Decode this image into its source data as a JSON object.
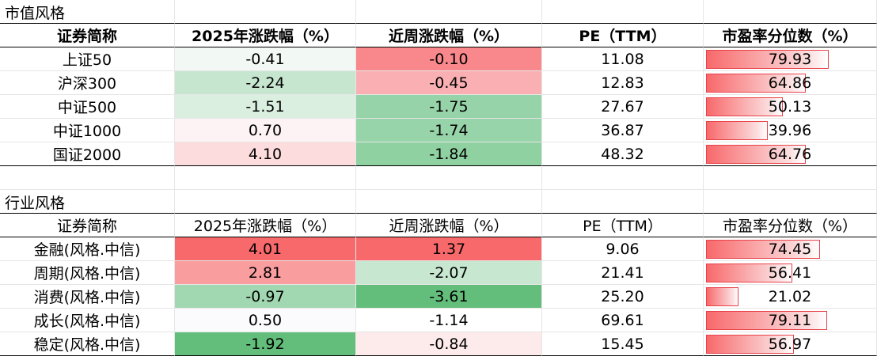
{
  "sections": [
    {
      "title": "市值风格",
      "header_bold": true,
      "headers": [
        "证券简称",
        "2025年涨跌幅（%）",
        "近周涨跌幅（%）",
        "PE（TTM）",
        "市盈率分位数（%）"
      ],
      "rows": [
        {
          "name": "上证50",
          "ytd": "-0.41",
          "ytd_bg": "#f2f8f4",
          "week": "-0.10",
          "week_bg": "#f8888b",
          "pe": "11.08",
          "pctile": "79.93",
          "pctile_frac": 0.7993
        },
        {
          "name": "沪深300",
          "ytd": "-2.24",
          "ytd_bg": "#c6e6d0",
          "week": "-0.45",
          "week_bg": "#fab0b2",
          "pe": "12.83",
          "pctile": "64.86",
          "pctile_frac": 0.6486
        },
        {
          "name": "中证500",
          "ytd": "-1.51",
          "ytd_bg": "#dbefe1",
          "week": "-1.75",
          "week_bg": "#97d3a8",
          "pe": "27.67",
          "pctile": "50.13",
          "pctile_frac": 0.5013
        },
        {
          "name": "中证1000",
          "ytd": "0.70",
          "ytd_bg": "#fdf3f4",
          "week": "-1.74",
          "week_bg": "#98d4a9",
          "pe": "36.87",
          "pctile": "39.96",
          "pctile_frac": 0.3996
        },
        {
          "name": "国证2000",
          "ytd": "4.10",
          "ytd_bg": "#fcdcdd",
          "week": "-1.84",
          "week_bg": "#8fd1a1",
          "pe": "48.32",
          "pctile": "64.76",
          "pctile_frac": 0.6476
        }
      ]
    },
    {
      "title": "行业风格",
      "header_bold": false,
      "headers": [
        "证券简称",
        "2025年涨跌幅（%）",
        "近周涨跌幅（%）",
        "PE（TTM）",
        "市盈率分位数（%）"
      ],
      "rows": [
        {
          "name": "金融(风格.中信)",
          "ytd": "4.01",
          "ytd_bg": "#f8696b",
          "week": "1.37",
          "week_bg": "#f8696b",
          "pe": "9.06",
          "pctile": "74.45",
          "pctile_frac": 0.7445
        },
        {
          "name": "周期(风格.中信)",
          "ytd": "2.81",
          "ytd_bg": "#fa9d9f",
          "week": "-2.07",
          "week_bg": "#c7e7d0",
          "pe": "21.41",
          "pctile": "56.41",
          "pctile_frac": 0.5641
        },
        {
          "name": "消费(风格.中信)",
          "ytd": "-0.97",
          "ytd_bg": "#a2d8b1",
          "week": "-3.61",
          "week_bg": "#63be7b",
          "pe": "25.20",
          "pctile": "21.02",
          "pctile_frac": 0.2102
        },
        {
          "name": "成长(风格.中信)",
          "ytd": "0.50",
          "ytd_bg": "#fbfbfd",
          "week": "-1.14",
          "week_bg": "#ffffff",
          "pe": "69.61",
          "pctile": "79.11",
          "pctile_frac": 0.7911
        },
        {
          "name": "稳定(风格.中信)",
          "ytd": "-1.92",
          "ytd_bg": "#63be7b",
          "week": "-0.84",
          "week_bg": "#fdebec",
          "pe": "15.45",
          "pctile": "56.97",
          "pctile_frac": 0.5697
        }
      ]
    }
  ],
  "colors": {
    "bar_border": "#e8424a",
    "bar_fill_start": "#f8696b",
    "grid": "#e6e6e6"
  }
}
